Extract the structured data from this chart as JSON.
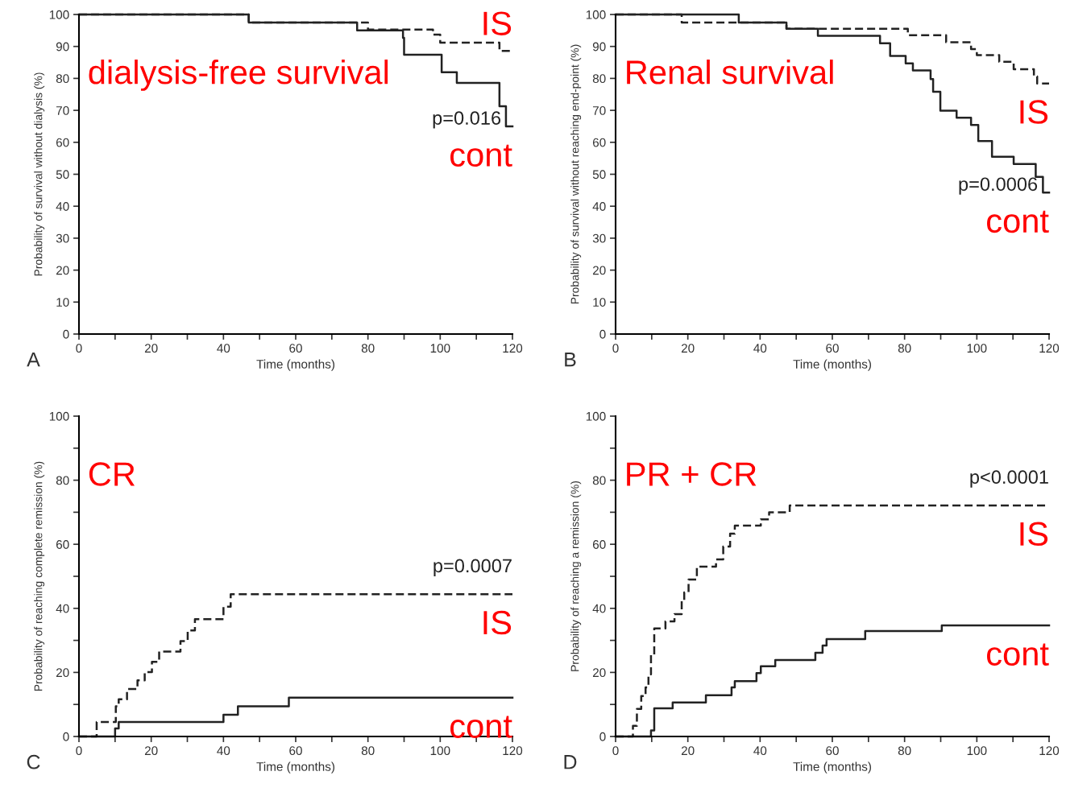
{
  "chart_data": [
    {
      "type": "step",
      "title": "dialysis-free survival",
      "xlabel": "Time (months)",
      "ylabel": "Probability of survival without dialysis (%)",
      "xlim": [
        0,
        120
      ],
      "ylim": [
        0,
        100
      ],
      "xticks": [
        0,
        {
          "value": 10,
          "label": null
        },
        20,
        {
          "value": 30,
          "label": null
        },
        40,
        {
          "value": 50,
          "label": null
        },
        60,
        {
          "value": 70,
          "label": null
        },
        80,
        {
          "value": 90,
          "label": null
        },
        100,
        {
          "value": 110,
          "label": null
        },
        120
      ],
      "yticks": [
        0,
        10,
        20,
        30,
        40,
        50,
        60,
        70,
        80,
        90,
        100
      ],
      "grid": false,
      "legend": false,
      "series": [
        {
          "name": "IS",
          "color": "#222222",
          "line_style": "dashed",
          "x": [
            0,
            47,
            80,
            98,
            100,
            116.4,
            120
          ],
          "values": [
            100,
            97.5,
            95.3,
            93.7,
            91.2,
            88.6,
            88.6
          ]
        },
        {
          "name": "cont",
          "color": "#222222",
          "line_style": "solid",
          "x": [
            0,
            47,
            77,
            89.7,
            90,
            100.4,
            104.6,
            116.4,
            118.2,
            120
          ],
          "values": [
            100,
            97.5,
            95,
            92.7,
            87.4,
            81.9,
            78.6,
            71.3,
            65,
            65
          ]
        }
      ],
      "annotations": [
        "p=0.016",
        "A"
      ]
    },
    {
      "type": "step",
      "title": "Renal survival",
      "xlabel": "Time (months)",
      "ylabel": "Probability of survival without reaching end-point (%)",
      "xlim": [
        0,
        120
      ],
      "ylim": [
        0,
        100
      ],
      "xticks": [
        0,
        {
          "value": 10,
          "label": null
        },
        20,
        {
          "value": 30,
          "label": null
        },
        40,
        {
          "value": 50,
          "label": null
        },
        60,
        {
          "value": 70,
          "label": null
        },
        80,
        {
          "value": 90,
          "label": null
        },
        100,
        {
          "value": 110,
          "label": null
        },
        120
      ],
      "yticks": [
        0,
        10,
        20,
        30,
        40,
        50,
        60,
        70,
        80,
        90,
        100
      ],
      "grid": false,
      "legend": false,
      "series": [
        {
          "name": "IS",
          "color": "#222222",
          "line_style": "dashed",
          "x": [
            0,
            18.3,
            47.3,
            80.9,
            91.5,
            98.4,
            100,
            106.2,
            110.2,
            115.8,
            116.7,
            120
          ],
          "values": [
            100,
            97.5,
            95.5,
            93.5,
            91.3,
            89.2,
            87.3,
            85.2,
            82.9,
            80.6,
            78.4,
            78.4
          ]
        },
        {
          "name": "cont",
          "color": "#222222",
          "line_style": "solid",
          "x": [
            0,
            34.1,
            47.3,
            56,
            73.2,
            76,
            80.3,
            82.3,
            87.2,
            87.9,
            89.9,
            94.4,
            98.4,
            100.4,
            104.2,
            110.2,
            116.3,
            118.3,
            120
          ],
          "values": [
            100,
            97.5,
            95.5,
            93.3,
            91,
            87,
            84.7,
            82.5,
            79.8,
            75.8,
            69.9,
            67.7,
            65.4,
            60.4,
            55.5,
            53.2,
            49.2,
            44.3,
            44.3
          ]
        }
      ],
      "annotations": [
        "p=0.0006",
        "B"
      ]
    },
    {
      "type": "step",
      "title": "CR",
      "xlabel": "Time (months)",
      "ylabel": "Probability of reaching complete remission (%)",
      "xlim": [
        0,
        120
      ],
      "ylim": [
        0,
        100
      ],
      "xticks": [
        0,
        {
          "value": 10,
          "label": null
        },
        20,
        {
          "value": 30,
          "label": null
        },
        40,
        {
          "value": 50,
          "label": null
        },
        60,
        {
          "value": 70,
          "label": null
        },
        80,
        {
          "value": 90,
          "label": null
        },
        100,
        {
          "value": 110,
          "label": null
        },
        120
      ],
      "yticks": [
        0,
        {
          "value": 10,
          "label": null
        },
        20,
        {
          "value": 30,
          "label": null
        },
        40,
        {
          "value": 50,
          "label": null
        },
        60,
        {
          "value": 70,
          "label": null
        },
        80,
        {
          "value": 90,
          "label": null
        },
        100
      ],
      "grid": false,
      "legend": false,
      "series": [
        {
          "name": "IS",
          "color": "#222222",
          "line_style": "dashed",
          "x": [
            0,
            4.9,
            10.2,
            11,
            13.3,
            16.2,
            18.2,
            20.2,
            22.2,
            28.1,
            30.1,
            32.1,
            40,
            42,
            120
          ],
          "values": [
            0,
            4.5,
            9.4,
            11.6,
            14.8,
            17.5,
            20.1,
            23.3,
            26.5,
            29.8,
            33.1,
            36.6,
            40.5,
            44.4,
            44.4
          ]
        },
        {
          "name": "cont",
          "color": "#222222",
          "line_style": "solid",
          "x": [
            0,
            10,
            11,
            40,
            44,
            58.1,
            120
          ],
          "values": [
            0,
            2.5,
            4.5,
            6.8,
            9.4,
            12.1,
            12.1
          ]
        }
      ],
      "annotations": [
        "p=0.0007",
        "C"
      ]
    },
    {
      "type": "step",
      "title": "PR + CR",
      "xlabel": "Time (months)",
      "ylabel": "Probability of reaching a remission (%)",
      "xlim": [
        0,
        120
      ],
      "ylim": [
        0,
        100
      ],
      "xticks": [
        0,
        {
          "value": 10,
          "label": null
        },
        20,
        {
          "value": 30,
          "label": null
        },
        40,
        {
          "value": 50,
          "label": null
        },
        60,
        {
          "value": 70,
          "label": null
        },
        80,
        {
          "value": 90,
          "label": null
        },
        100,
        {
          "value": 110,
          "label": null
        },
        120
      ],
      "yticks": [
        0,
        {
          "value": 10,
          "label": null
        },
        20,
        {
          "value": 30,
          "label": null
        },
        40,
        {
          "value": 50,
          "label": null
        },
        60,
        {
          "value": 70,
          "label": null
        },
        80,
        {
          "value": 90,
          "label": null
        },
        100
      ],
      "grid": false,
      "legend": false,
      "series": [
        {
          "name": "IS",
          "color": "#222222",
          "line_style": "dashed",
          "x": [
            0,
            4.8,
            5.9,
            7.1,
            8.3,
            9.1,
            9.8,
            10.7,
            13.8,
            16.3,
            18.3,
            19,
            20.2,
            22.5,
            27.8,
            29.8,
            31.7,
            33,
            40.2,
            42.5,
            48.2,
            120
          ],
          "values": [
            0,
            3.3,
            8.6,
            12.6,
            15.3,
            19.4,
            25.6,
            33.7,
            35.9,
            38.2,
            42.2,
            45,
            49,
            53,
            55.3,
            59.3,
            63.3,
            65.8,
            67.8,
            70,
            72.1,
            72.1
          ]
        },
        {
          "name": "cont",
          "color": "#222222",
          "line_style": "solid",
          "x": [
            0,
            9.8,
            10.7,
            15.8,
            25,
            32.1,
            33,
            39,
            40.2,
            44.2,
            55.3,
            57.3,
            58.4,
            69.1,
            90.3,
            120
          ],
          "values": [
            0,
            1.9,
            8.8,
            10.6,
            12.9,
            15.3,
            17.3,
            19.8,
            21.9,
            23.9,
            26.1,
            28.4,
            30.4,
            32.9,
            34.7,
            34.7
          ]
        }
      ],
      "annotations": [
        "p<0.0001",
        "D"
      ]
    }
  ]
}
